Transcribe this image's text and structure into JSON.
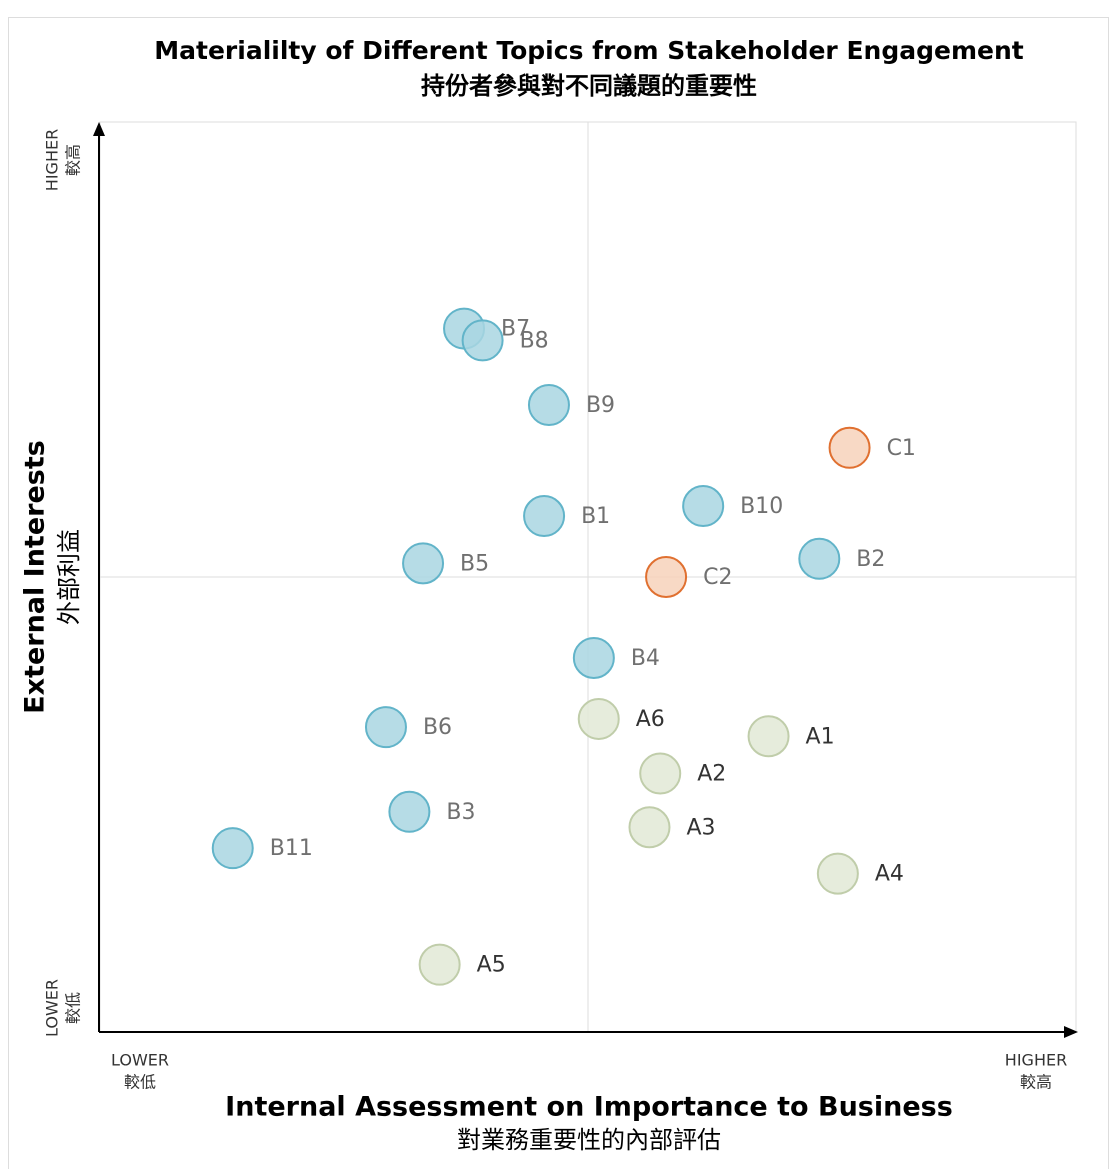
{
  "chart_data": {
    "type": "scatter",
    "title": "Materialilty of Different Topics from Stakeholder Engagement",
    "subtitle": "持份者參與對不同議題的重要性",
    "x_label": "Internal Assessment on Importance to Business",
    "x_label_sub": "對業務重要性的內部評估",
    "y_label": "External Interests",
    "y_label_sub": "外部利益",
    "x_low": "LOWER",
    "x_low_sub": "較低",
    "x_high": "HIGHER",
    "x_high_sub": "較高",
    "y_low": "LOWER",
    "y_low_sub": "較低",
    "y_high": "HIGHER",
    "y_high_sub": "較高",
    "xlim": [
      0,
      10
    ],
    "ylim": [
      0,
      10
    ],
    "grid": true,
    "series": [
      {
        "color": "#a9d6e2",
        "stroke": "#62b4c9",
        "label_color": "#707070",
        "labels": [
          "B7",
          "B8",
          "B9",
          "B10",
          "B1",
          "B2",
          "B5",
          "B4",
          "B6",
          "B3",
          "B11"
        ],
        "x": [
          3.73,
          3.92,
          4.6,
          6.18,
          4.55,
          7.37,
          3.31,
          5.06,
          2.93,
          3.17,
          1.36
        ],
        "y": [
          7.73,
          7.6,
          6.89,
          5.78,
          5.67,
          5.2,
          5.15,
          4.11,
          3.35,
          2.42,
          2.02
        ]
      },
      {
        "color": "#e2e9d6",
        "stroke": "#c0cdaa",
        "label_color": "#333333",
        "labels": [
          "A6",
          "A1",
          "A2",
          "A3",
          "A4",
          "A5"
        ],
        "x": [
          5.11,
          6.85,
          5.74,
          5.63,
          7.56,
          3.48
        ],
        "y": [
          3.44,
          3.25,
          2.84,
          2.25,
          1.74,
          0.74
        ]
      },
      {
        "color": "#f7d2bb",
        "stroke": "#e07030",
        "label_color": "#707070",
        "labels": [
          "C1",
          "C2"
        ],
        "x": [
          7.68,
          5.8
        ],
        "y": [
          6.42,
          5.0
        ]
      }
    ]
  }
}
